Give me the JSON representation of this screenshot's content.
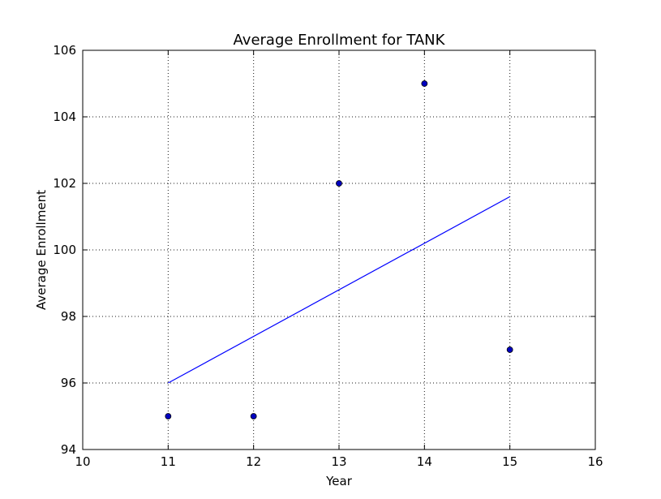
{
  "chart_data": {
    "type": "scatter",
    "title": "Average Enrollment for TANK",
    "xlabel": "Year",
    "ylabel": "Average Enrollment",
    "xlim": [
      10,
      16
    ],
    "ylim": [
      94,
      106
    ],
    "xticks": [
      10,
      11,
      12,
      13,
      14,
      15,
      16
    ],
    "yticks": [
      94,
      96,
      98,
      100,
      102,
      104,
      106
    ],
    "grid": true,
    "points": {
      "x": [
        11,
        12,
        13,
        14,
        15
      ],
      "y": [
        95,
        95,
        102,
        105,
        97
      ],
      "color": "#0000bf"
    },
    "trend_line": {
      "x": [
        11,
        15
      ],
      "y": [
        96.0,
        101.6
      ],
      "color": "#0000ff"
    }
  }
}
